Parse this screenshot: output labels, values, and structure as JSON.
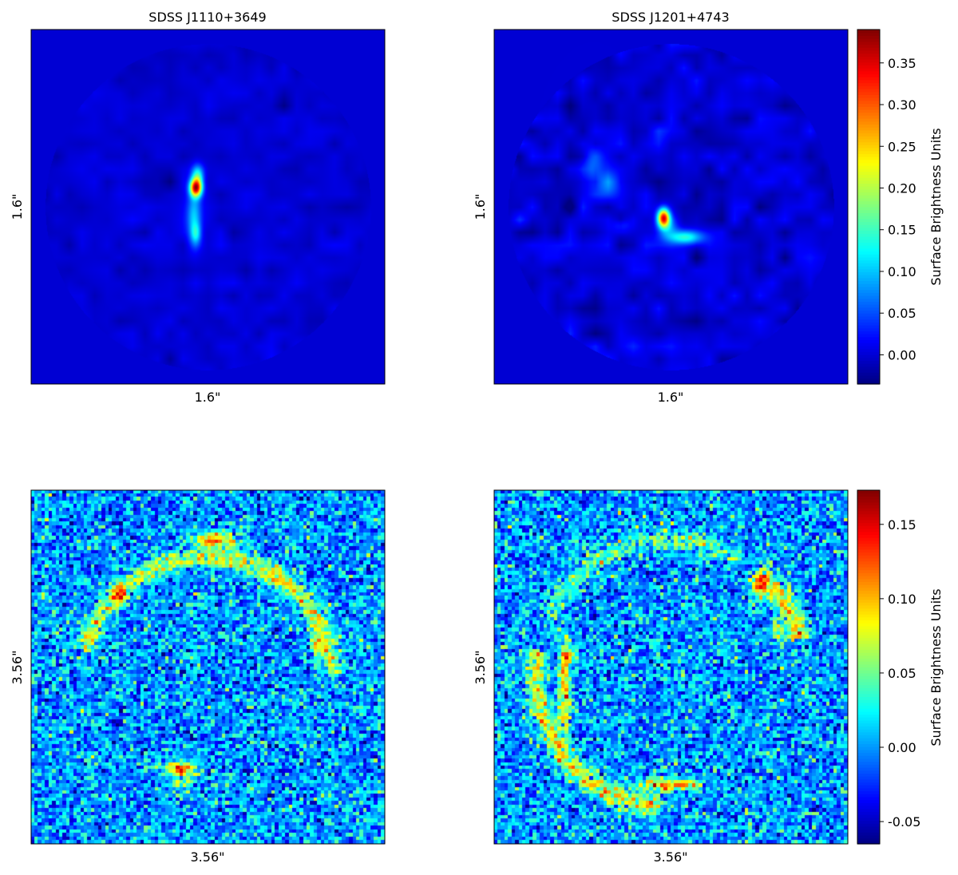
{
  "chart_data": [
    {
      "type": "heatmap",
      "panel": "top-left",
      "title": "SDSS J1110+3649",
      "xlabel": "1.6\"",
      "ylabel": "1.6\"",
      "colormap": "jet",
      "value_range": [
        -0.035,
        0.39
      ],
      "background_value": 0.0,
      "features": [
        {
          "shape": "compact core",
          "peak": 0.35
        },
        {
          "shape": "elongated north-south tail",
          "peak": 0.14
        }
      ]
    },
    {
      "type": "heatmap",
      "panel": "top-right",
      "title": "SDSS J1201+4743",
      "xlabel": "1.6\"",
      "ylabel": "1.6\"",
      "colormap": "jet",
      "value_range": [
        -0.035,
        0.39
      ],
      "background_value": 0.0,
      "features": [
        {
          "shape": "compact core",
          "peak": 0.33
        },
        {
          "shape": "extended arc to the south-east",
          "peak": 0.16
        },
        {
          "shape": "faint filament to the north-west",
          "peak": 0.07
        }
      ],
      "colorbar": {
        "label": "Surface Brightness Units",
        "ticks": [
          "0.00",
          "0.05",
          "0.10",
          "0.15",
          "0.20",
          "0.25",
          "0.30",
          "0.35"
        ],
        "tick_values": [
          0.0,
          0.05,
          0.1,
          0.15,
          0.2,
          0.25,
          0.3,
          0.35
        ],
        "range": [
          -0.035,
          0.39
        ]
      }
    },
    {
      "type": "heatmap",
      "panel": "bottom-left",
      "title": "",
      "xlabel": "3.56\"",
      "ylabel": "3.56\"",
      "colormap": "jet",
      "value_range": [
        -0.065,
        0.173
      ],
      "background_value": 0.0,
      "features": [
        {
          "shape": "ring arc (upper half)",
          "peak": 0.17
        },
        {
          "shape": "counter-image (bottom)",
          "peak": 0.16
        }
      ]
    },
    {
      "type": "heatmap",
      "panel": "bottom-right",
      "title": "",
      "xlabel": "3.56\"",
      "ylabel": "3.56\"",
      "colormap": "jet",
      "value_range": [
        -0.065,
        0.173
      ],
      "background_value": 0.0,
      "features": [
        {
          "shape": "ring arc (left and bottom)",
          "peak": 0.17
        },
        {
          "shape": "arc segment (upper right)",
          "peak": 0.16
        }
      ],
      "colorbar": {
        "label": "Surface Brightness Units",
        "ticks": [
          "-0.05",
          "0.00",
          "0.05",
          "0.10",
          "0.15"
        ],
        "tick_values": [
          -0.05,
          0.0,
          0.05,
          0.1,
          0.15
        ],
        "range": [
          -0.065,
          0.173
        ]
      }
    }
  ]
}
